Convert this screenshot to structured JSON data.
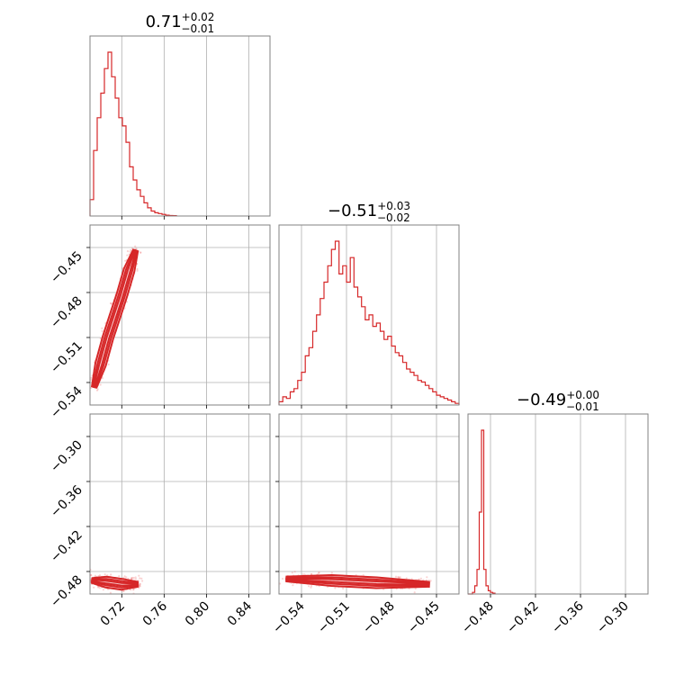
{
  "chart_data": {
    "type": "corner",
    "color": "#d62728",
    "parameters": [
      {
        "median": "0.71",
        "plus": "+0.02",
        "minus": "−0.01",
        "range": [
          0.69,
          0.86
        ],
        "ticks": [
          0.72,
          0.76,
          0.8,
          0.84
        ],
        "tick_labels": [
          "0.72",
          "0.76",
          "0.80",
          "0.84"
        ]
      },
      {
        "median": "−0.51",
        "plus": "+0.03",
        "minus": "−0.02",
        "range": [
          -0.555,
          -0.435
        ],
        "ticks": [
          -0.54,
          -0.51,
          -0.48,
          -0.45
        ],
        "tick_labels": [
          "−0.54",
          "−0.51",
          "−0.48",
          "−0.45"
        ]
      },
      {
        "median": "−0.49",
        "plus": "+0.00",
        "minus": "−0.01",
        "range": [
          -0.51,
          -0.27
        ],
        "ticks": [
          -0.48,
          -0.42,
          -0.36,
          -0.3
        ],
        "tick_labels": [
          "−0.48",
          "−0.42",
          "−0.36",
          "−0.30"
        ]
      }
    ],
    "histograms": [
      {
        "param": 0,
        "edges_start": 0.69,
        "bin": 0.0034,
        "counts": [
          0.1,
          0.4,
          0.6,
          0.75,
          0.9,
          1.0,
          0.85,
          0.72,
          0.6,
          0.55,
          0.45,
          0.3,
          0.22,
          0.16,
          0.12,
          0.08,
          0.05,
          0.03,
          0.02,
          0.015,
          0.01,
          0.005,
          0.003,
          0.002
        ]
      },
      {
        "param": 1,
        "edges_start": -0.555,
        "bin": 0.0025,
        "counts": [
          0.02,
          0.05,
          0.04,
          0.08,
          0.1,
          0.15,
          0.2,
          0.3,
          0.35,
          0.45,
          0.55,
          0.65,
          0.75,
          0.85,
          0.95,
          1.0,
          0.8,
          0.85,
          0.75,
          0.9,
          0.72,
          0.66,
          0.6,
          0.52,
          0.55,
          0.48,
          0.5,
          0.45,
          0.4,
          0.42,
          0.36,
          0.32,
          0.3,
          0.26,
          0.22,
          0.2,
          0.18,
          0.15,
          0.14,
          0.12,
          0.1,
          0.08,
          0.06,
          0.05,
          0.04,
          0.03,
          0.02,
          0.01
        ]
      },
      {
        "param": 2,
        "edges_start": -0.51,
        "bin": 0.003,
        "counts": [
          0.0,
          0.0,
          0.01,
          0.05,
          0.15,
          0.5,
          1.0,
          0.15,
          0.05,
          0.02,
          0.01,
          0.005
        ]
      }
    ],
    "scatter_panels": [
      {
        "x_param": 0,
        "y_param": 1,
        "center_line": [
          [
            0.694,
            -0.543
          ],
          [
            0.7,
            -0.528
          ],
          [
            0.707,
            -0.51
          ],
          [
            0.714,
            -0.495
          ],
          [
            0.72,
            -0.482
          ],
          [
            0.727,
            -0.465
          ],
          [
            0.733,
            -0.452
          ]
        ]
      },
      {
        "x_param": 0,
        "y_param": 2,
        "center_line": [
          [
            0.692,
            -0.492
          ],
          [
            0.705,
            -0.494
          ],
          [
            0.72,
            -0.497
          ],
          [
            0.735,
            -0.497
          ]
        ]
      },
      {
        "x_param": 1,
        "y_param": 2,
        "center_line": [
          [
            -0.55,
            -0.49
          ],
          [
            -0.52,
            -0.492
          ],
          [
            -0.49,
            -0.495
          ],
          [
            -0.455,
            -0.497
          ]
        ]
      }
    ]
  }
}
